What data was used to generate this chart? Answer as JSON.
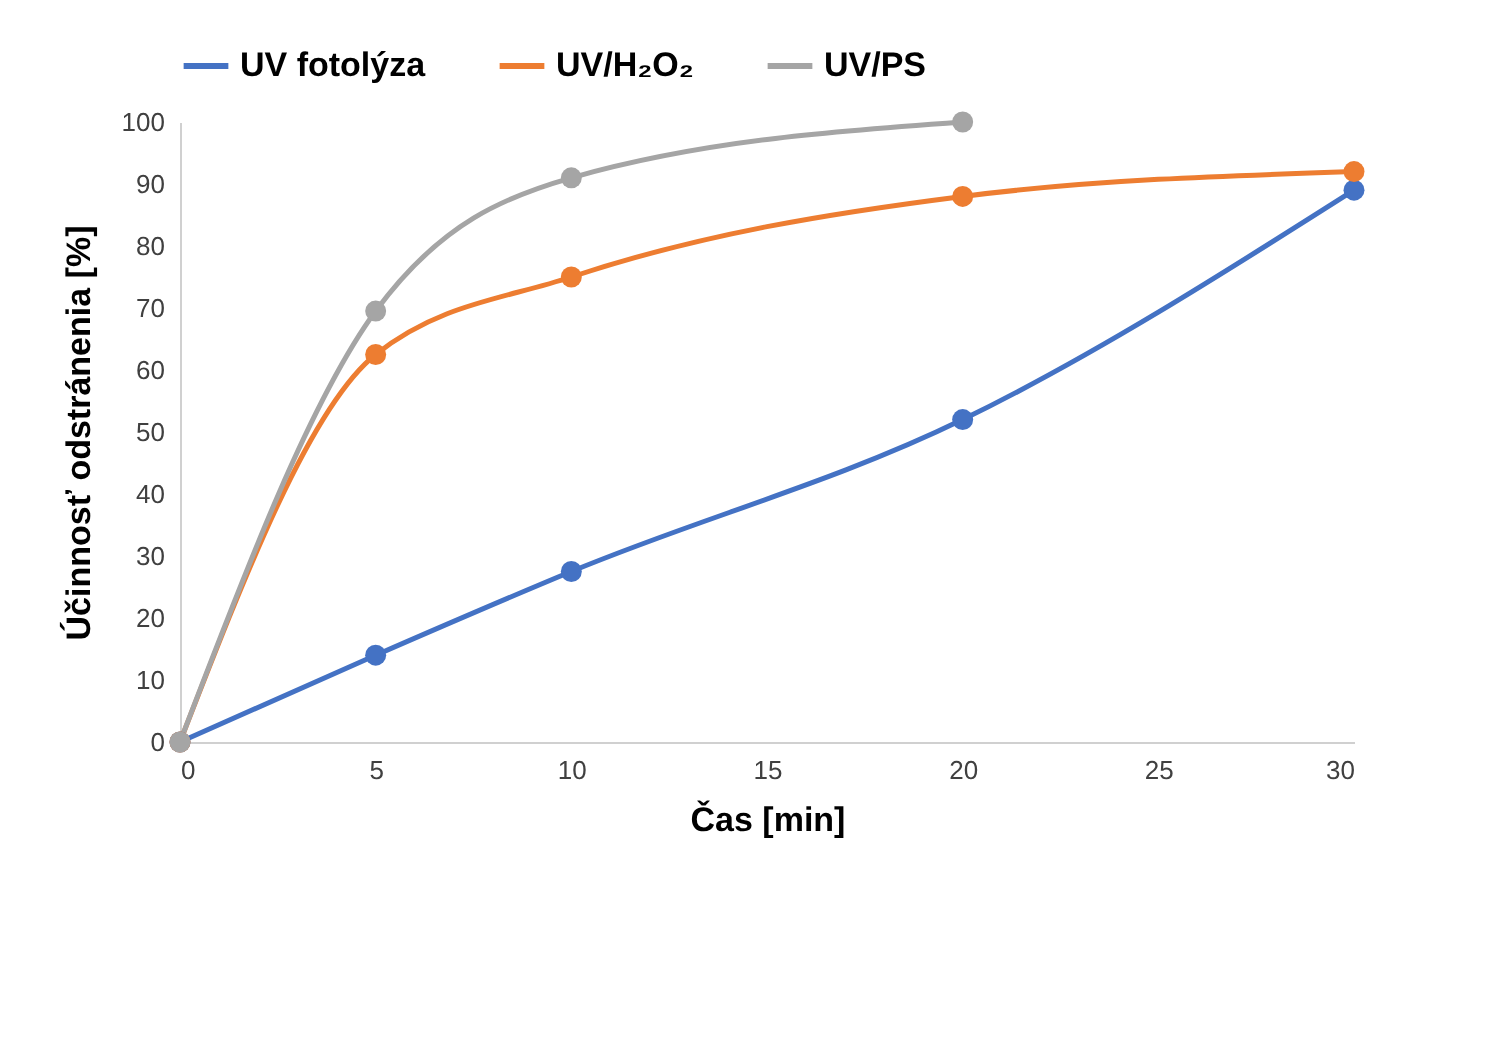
{
  "chart_data": {
    "type": "line",
    "xlabel": "Čas [min]",
    "ylabel": "Účinnosť odstránenia [%]",
    "xlim": [
      0,
      30
    ],
    "xticks": [
      0,
      5,
      10,
      15,
      20,
      25,
      30
    ],
    "ylim": [
      0,
      100
    ],
    "yticks": [
      0,
      10,
      20,
      30,
      40,
      50,
      60,
      70,
      80,
      90,
      100
    ],
    "grid": false,
    "legend": "top",
    "marker": "circle",
    "line_style": "solid",
    "series": [
      {
        "name": "UV fotolýza",
        "color": "#4472c4",
        "x": [
          0,
          5,
          10,
          20,
          30
        ],
        "values": [
          0,
          14,
          27.5,
          52,
          89
        ]
      },
      {
        "name": "UV/H₂O₂",
        "color": "#ed7d31",
        "x": [
          0,
          5,
          10,
          20,
          30
        ],
        "values": [
          0,
          62.5,
          75,
          88,
          92
        ]
      },
      {
        "name": "UV/PS",
        "color": "#a5a5a5",
        "x": [
          0,
          5,
          10,
          20
        ],
        "values": [
          0,
          69.5,
          91,
          100
        ]
      }
    ]
  }
}
